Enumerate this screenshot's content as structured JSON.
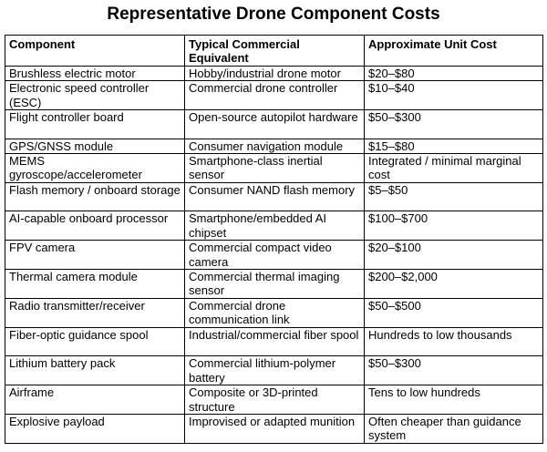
{
  "document": {
    "title": "Representative Drone Component Costs"
  },
  "table": {
    "headers": [
      "Component",
      "Typical Commercial Equivalent",
      "Approximate Unit Cost"
    ],
    "rows": [
      [
        "Brushless electric motor",
        "Hobby/industrial drone motor",
        "$20–$80"
      ],
      [
        "Electronic speed controller (ESC)",
        "Commercial drone controller",
        "$10–$40"
      ],
      [
        "Flight controller board",
        "Open-source autopilot hardware",
        "$50–$300"
      ],
      [
        "GPS/GNSS module",
        "Consumer navigation module",
        "$15–$80"
      ],
      [
        "MEMS gyroscope/accelerometer",
        "Smartphone-class inertial sensor",
        "Integrated / minimal marginal cost"
      ],
      [
        "Flash memory / onboard storage",
        "Consumer NAND flash memory",
        "$5–$50"
      ],
      [
        "AI-capable onboard processor",
        "Smartphone/embedded AI chipset",
        "$100–$700"
      ],
      [
        "FPV camera",
        "Commercial compact video camera",
        "$20–$100"
      ],
      [
        "Thermal camera module",
        "Commercial thermal imaging sensor",
        "$200–$2,000"
      ],
      [
        "Radio transmitter/receiver",
        "Commercial drone communication link",
        "$50–$500"
      ],
      [
        "Fiber-optic guidance spool",
        "Industrial/commercial fiber spool",
        "Hundreds to low thousands"
      ],
      [
        "Lithium battery pack",
        "Commercial lithium-polymer battery",
        "$50–$300"
      ],
      [
        "Airframe",
        "Composite or 3D-printed structure",
        "Tens to low hundreds"
      ],
      [
        "Explosive payload",
        "Improvised or adapted munition",
        "Often cheaper than guidance system"
      ]
    ]
  }
}
